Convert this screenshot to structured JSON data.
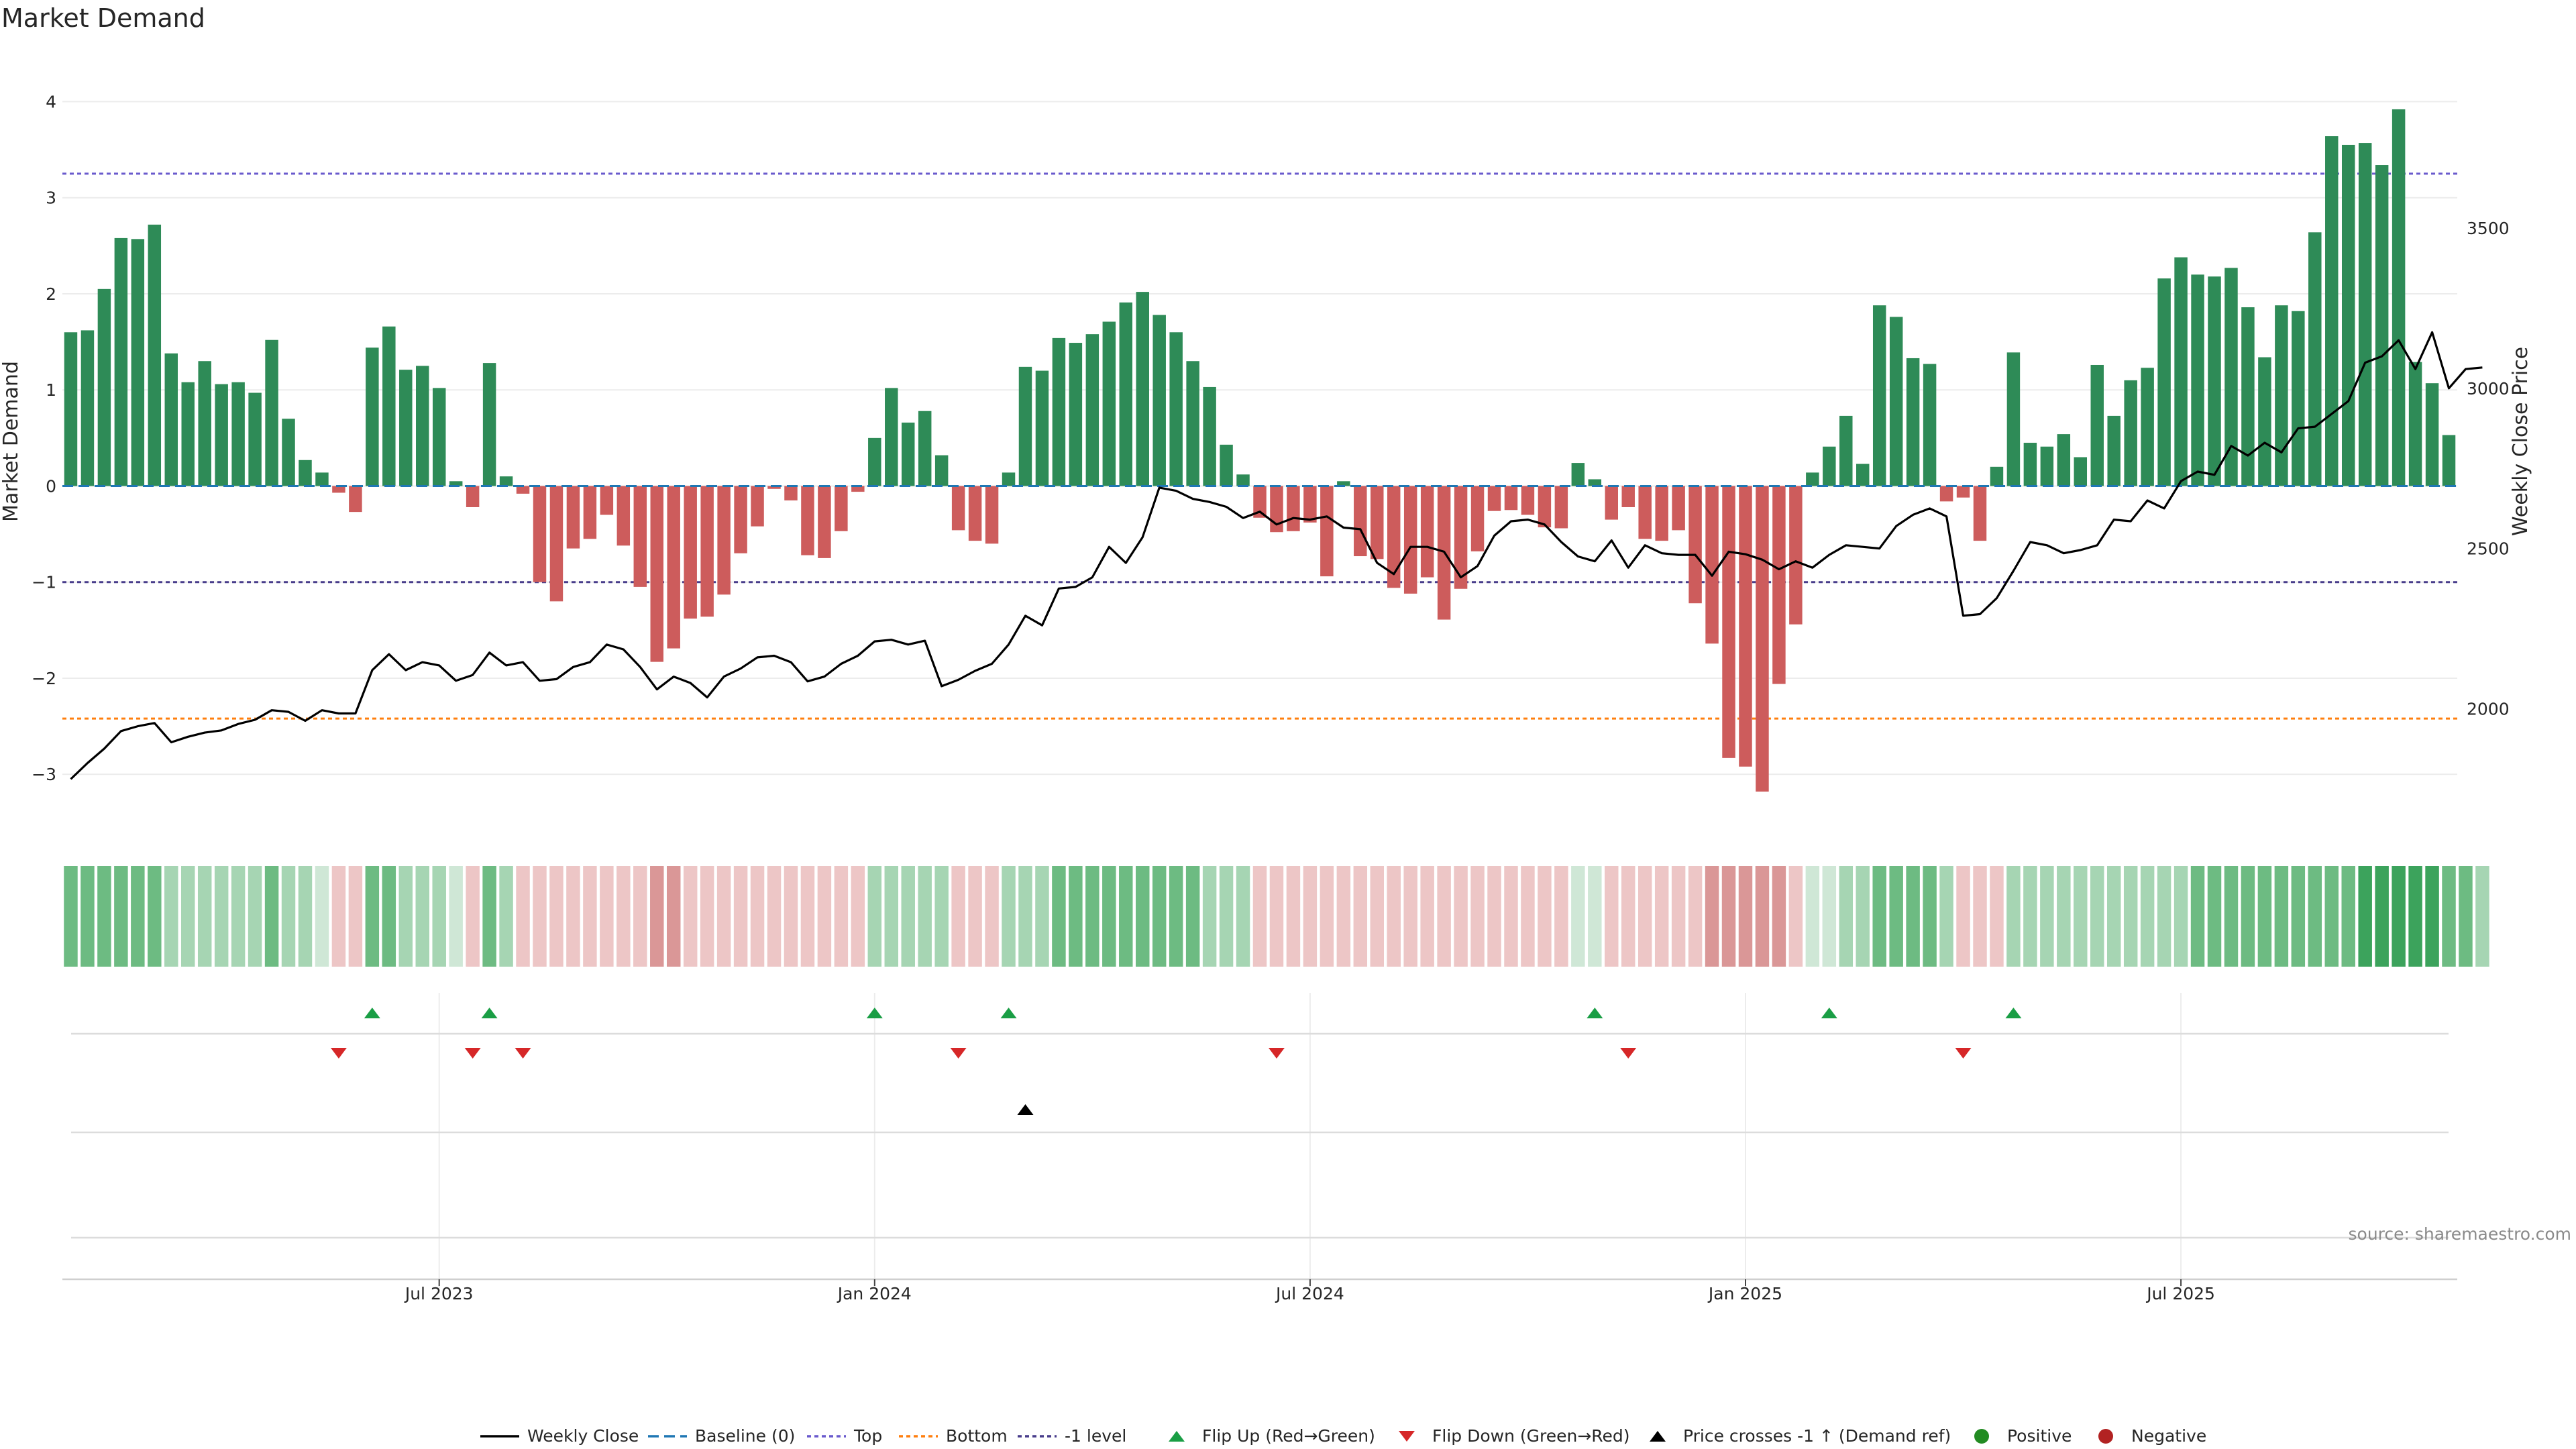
{
  "chart_data": {
    "type": "bar+line",
    "title": "Market Demand",
    "ylabel": "Market Demand",
    "y2label": "Weekly Close Price",
    "ylim": [
      -3.55,
      4.15
    ],
    "y2lim": [
      1630,
      3940
    ],
    "yticks": [
      4,
      3,
      2,
      1,
      0,
      -1,
      -2,
      -3
    ],
    "ytick_labels": [
      "4",
      "3",
      "2",
      "1",
      "0",
      "−1",
      "−2",
      "−3"
    ],
    "y2ticks": [
      3500,
      3000,
      2500,
      2000
    ],
    "y2tick_labels": [
      "3500",
      "3000",
      "2500",
      "2000"
    ],
    "x_ticks": [
      {
        "label": "Jul 2023",
        "week": 22
      },
      {
        "label": "Jan 2024",
        "week": 48
      },
      {
        "label": "Jul 2024",
        "week": 74
      },
      {
        "label": "Jan 2025",
        "week": 100
      },
      {
        "label": "Jul 2025",
        "week": 126
      }
    ],
    "reference_lines": {
      "top": 3.25,
      "bottom": -2.42,
      "minus_one": -1.0,
      "baseline": 0
    },
    "demand": [
      1.6,
      1.62,
      2.05,
      2.58,
      2.57,
      2.72,
      1.38,
      1.08,
      1.3,
      1.06,
      1.08,
      0.97,
      1.52,
      0.7,
      0.27,
      0.14,
      -0.07,
      -0.27,
      1.44,
      1.66,
      1.21,
      1.25,
      1.02,
      0.05,
      -0.22,
      1.28,
      0.1,
      -0.08,
      -1.0,
      -1.2,
      -0.65,
      -0.55,
      -0.3,
      -0.62,
      -1.05,
      -1.83,
      -1.69,
      -1.38,
      -1.36,
      -1.13,
      -0.7,
      -0.42,
      -0.03,
      -0.15,
      -0.72,
      -0.75,
      -0.47,
      -0.06,
      0.5,
      1.02,
      0.66,
      0.78,
      0.32,
      -0.46,
      -0.57,
      -0.6,
      0.14,
      1.24,
      1.2,
      1.54,
      1.49,
      1.58,
      1.71,
      1.91,
      2.02,
      1.78,
      1.6,
      1.3,
      1.03,
      0.43,
      0.12,
      -0.33,
      -0.48,
      -0.47,
      -0.38,
      -0.94,
      0.05,
      -0.73,
      -0.76,
      -1.06,
      -1.12,
      -0.95,
      -1.39,
      -1.07,
      -0.68,
      -0.26,
      -0.25,
      -0.3,
      -0.43,
      -0.44,
      0.24,
      0.07,
      -0.35,
      -0.22,
      -0.55,
      -0.57,
      -0.46,
      -1.22,
      -1.64,
      -2.83,
      -2.92,
      -3.18,
      -2.06,
      -1.44,
      0.14,
      0.41,
      0.73,
      0.23,
      1.88,
      1.76,
      1.33,
      1.27,
      -0.16,
      -0.12,
      -0.57,
      0.2,
      1.39,
      0.45,
      0.41,
      0.54,
      0.3,
      1.26,
      0.73,
      1.1,
      1.23,
      2.16,
      2.38,
      2.2,
      2.18,
      2.27,
      1.86,
      1.34,
      1.88,
      1.82,
      2.64,
      3.64,
      3.55,
      3.57,
      3.34,
      3.92,
      1.29,
      1.07,
      0.53
    ],
    "close": [
      1780,
      1830,
      1875,
      1930,
      1945,
      1955,
      1895,
      1912,
      1925,
      1932,
      1952,
      1965,
      1995,
      1990,
      1962,
      1995,
      1985,
      1985,
      2120,
      2170,
      2120,
      2145,
      2135,
      2087,
      2105,
      2175,
      2135,
      2145,
      2087,
      2092,
      2130,
      2145,
      2200,
      2185,
      2130,
      2060,
      2100,
      2080,
      2035,
      2100,
      2125,
      2160,
      2165,
      2145,
      2085,
      2100,
      2140,
      2165,
      2210,
      2215,
      2200,
      2212,
      2070,
      2090,
      2118,
      2140,
      2200,
      2290,
      2260,
      2375,
      2380,
      2410,
      2505,
      2455,
      2535,
      2690,
      2680,
      2655,
      2645,
      2630,
      2595,
      2615,
      2575,
      2595,
      2590,
      2600,
      2565,
      2560,
      2455,
      2420,
      2505,
      2505,
      2490,
      2410,
      2445,
      2540,
      2585,
      2590,
      2575,
      2520,
      2475,
      2460,
      2525,
      2440,
      2510,
      2485,
      2480,
      2480,
      2415,
      2490,
      2482,
      2465,
      2435,
      2460,
      2440,
      2480,
      2510,
      2505,
      2500,
      2570,
      2605,
      2625,
      2600,
      2290,
      2295,
      2345,
      2430,
      2520,
      2510,
      2485,
      2495,
      2510,
      2590,
      2585,
      2650,
      2625,
      2710,
      2740,
      2730,
      2820,
      2790,
      2830,
      2800,
      2875,
      2880,
      2920,
      2960,
      3080,
      3100,
      3150,
      3060,
      3175,
      3000,
      3060,
      3065
    ],
    "strip_levels": [
      2,
      2,
      2,
      2,
      2,
      2,
      1,
      1,
      1,
      1,
      1,
      1,
      2,
      1,
      1,
      0,
      -1,
      -1,
      2,
      2,
      1,
      1,
      1,
      0,
      -1,
      2,
      1,
      -1,
      -1,
      -1,
      -1,
      -1,
      -1,
      -1,
      -1,
      -2,
      -2,
      -1,
      -1,
      -1,
      -1,
      -1,
      -1,
      -1,
      -1,
      -1,
      -1,
      -1,
      1,
      1,
      1,
      1,
      1,
      -1,
      -1,
      -1,
      1,
      1,
      1,
      2,
      2,
      2,
      2,
      2,
      2,
      2,
      2,
      2,
      1,
      1,
      1,
      -1,
      -1,
      -1,
      -1,
      -1,
      -1,
      -1,
      -1,
      -1,
      -1,
      -1,
      -1,
      -1,
      -1,
      -1,
      -1,
      -1,
      -1,
      -1,
      0,
      0,
      -1,
      -1,
      -1,
      -1,
      -1,
      -1,
      -2,
      -2,
      -2,
      -2,
      -2,
      -1,
      0,
      0,
      1,
      1,
      2,
      2,
      2,
      2,
      1,
      -1,
      -1,
      -1,
      1,
      1,
      1,
      1,
      1,
      1,
      1,
      1,
      1,
      1,
      1,
      2,
      2,
      2,
      2,
      2,
      2,
      2,
      2,
      2,
      2,
      3,
      3,
      3,
      3,
      3,
      2,
      2,
      1
    ],
    "flip_up_weeks": [
      18,
      25,
      48,
      56,
      91,
      105,
      116
    ],
    "flip_down_weeks": [
      16,
      24,
      27,
      53,
      72,
      93,
      113
    ],
    "cross_up_weeks": [
      57
    ],
    "legend": [
      "Weekly Close",
      "Baseline (0)",
      "Top",
      "Bottom",
      "-1 level",
      "Flip Up (Red→Green)",
      "Flip Down (Green→Red)",
      "Price crosses -1 ↑ (Demand ref)",
      "Positive",
      "Negative"
    ],
    "colors": {
      "positive": "#2e8b57",
      "negative": "#cd5c5c",
      "close": "#000000",
      "baseline": "#1f77b4",
      "top": "#6a5acd",
      "bottom": "#ff7f0e",
      "minus_one": "#483d8b",
      "flip_up": "#1a9e45",
      "flip_down": "#d62728",
      "legend_positive": "#228b22",
      "legend_negative": "#b22222"
    }
  },
  "source_note": "source: sharemaestro.com"
}
